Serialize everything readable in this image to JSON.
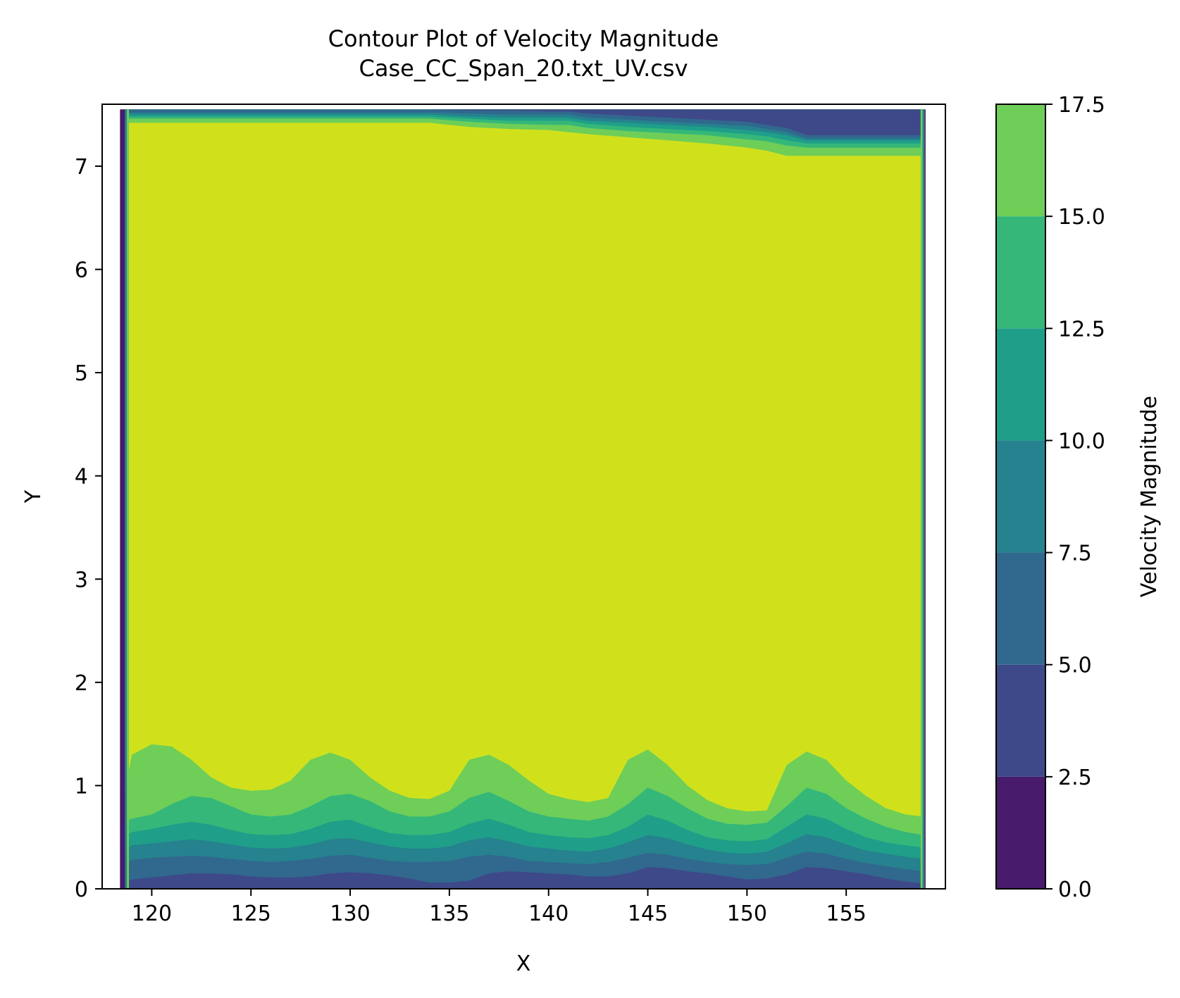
{
  "chart_data": {
    "type": "contour",
    "title": "Contour Plot of Velocity Magnitude",
    "subtitle": "Case_CC_Span_20.txt_UV.csv",
    "xlabel": "X",
    "ylabel": "Y",
    "xlim": [
      117.5,
      160.0
    ],
    "ylim": [
      0,
      7.6
    ],
    "x_ticks": [
      120,
      125,
      130,
      135,
      140,
      145,
      150,
      155
    ],
    "y_ticks": [
      0,
      1,
      2,
      3,
      4,
      5,
      6,
      7
    ],
    "data_x_range": [
      118.4,
      159.0
    ],
    "data_y_range": [
      0,
      7.55
    ],
    "colorbar": {
      "label": "Velocity Magnitude",
      "levels": [
        0.0,
        2.5,
        5.0,
        7.5,
        10.0,
        12.5,
        15.0,
        17.5
      ],
      "tick_labels": [
        "0.0",
        "2.5",
        "5.0",
        "7.5",
        "10.0",
        "12.5",
        "15.0",
        "17.5"
      ],
      "colors": [
        "#481b6d",
        "#3e4989",
        "#31688e",
        "#26828e",
        "#1f9e89",
        "#35b779",
        "#6ece58",
        "#d0e11c"
      ]
    },
    "bottom_boundary_layer": {
      "x": [
        118.6,
        119,
        120,
        121,
        122,
        123,
        124,
        125,
        126,
        127,
        128,
        129,
        130,
        131,
        132,
        133,
        134,
        135,
        136,
        137,
        138,
        139,
        140,
        141,
        142,
        143,
        144,
        145,
        146,
        147,
        148,
        149,
        150,
        151,
        152,
        153,
        154,
        155,
        156,
        157,
        158,
        158.9
      ],
      "contour_15": [
        0.9,
        1.3,
        1.4,
        1.38,
        1.25,
        1.08,
        0.98,
        0.95,
        0.96,
        1.05,
        1.25,
        1.32,
        1.25,
        1.08,
        0.95,
        0.88,
        0.87,
        0.95,
        1.25,
        1.3,
        1.2,
        1.05,
        0.92,
        0.87,
        0.84,
        0.88,
        1.25,
        1.35,
        1.2,
        1.0,
        0.86,
        0.78,
        0.75,
        0.76,
        1.2,
        1.33,
        1.25,
        1.05,
        0.9,
        0.78,
        0.72,
        0.7
      ],
      "contour_12_5": [
        0.65,
        0.68,
        0.72,
        0.82,
        0.9,
        0.88,
        0.8,
        0.72,
        0.7,
        0.72,
        0.8,
        0.9,
        0.92,
        0.85,
        0.75,
        0.7,
        0.7,
        0.75,
        0.88,
        0.94,
        0.85,
        0.75,
        0.7,
        0.68,
        0.66,
        0.7,
        0.82,
        0.98,
        0.9,
        0.78,
        0.68,
        0.63,
        0.62,
        0.64,
        0.8,
        0.98,
        0.92,
        0.78,
        0.68,
        0.6,
        0.55,
        0.52
      ],
      "contour_10": [
        0.5,
        0.55,
        0.58,
        0.62,
        0.65,
        0.62,
        0.57,
        0.53,
        0.52,
        0.53,
        0.58,
        0.65,
        0.67,
        0.6,
        0.54,
        0.52,
        0.52,
        0.55,
        0.63,
        0.68,
        0.62,
        0.55,
        0.52,
        0.5,
        0.49,
        0.52,
        0.6,
        0.72,
        0.66,
        0.57,
        0.5,
        0.47,
        0.46,
        0.48,
        0.6,
        0.72,
        0.68,
        0.58,
        0.5,
        0.45,
        0.42,
        0.4
      ],
      "contour_7_5": [
        0.38,
        0.42,
        0.44,
        0.46,
        0.48,
        0.46,
        0.43,
        0.4,
        0.39,
        0.4,
        0.43,
        0.48,
        0.49,
        0.45,
        0.41,
        0.39,
        0.39,
        0.41,
        0.47,
        0.5,
        0.46,
        0.41,
        0.39,
        0.37,
        0.36,
        0.39,
        0.45,
        0.52,
        0.49,
        0.43,
        0.38,
        0.35,
        0.34,
        0.36,
        0.44,
        0.53,
        0.5,
        0.43,
        0.37,
        0.34,
        0.31,
        0.29
      ],
      "contour_5": [
        0.25,
        0.28,
        0.3,
        0.31,
        0.32,
        0.31,
        0.29,
        0.27,
        0.26,
        0.27,
        0.29,
        0.32,
        0.33,
        0.3,
        0.27,
        0.26,
        0.26,
        0.27,
        0.31,
        0.33,
        0.31,
        0.27,
        0.26,
        0.25,
        0.24,
        0.26,
        0.3,
        0.35,
        0.33,
        0.29,
        0.26,
        0.24,
        0.23,
        0.24,
        0.3,
        0.36,
        0.34,
        0.29,
        0.25,
        0.22,
        0.19,
        0.17
      ],
      "contour_2_5": [
        0.07,
        0.09,
        0.11,
        0.13,
        0.15,
        0.15,
        0.14,
        0.12,
        0.11,
        0.11,
        0.12,
        0.15,
        0.16,
        0.15,
        0.13,
        0.1,
        0.06,
        0.06,
        0.08,
        0.15,
        0.17,
        0.16,
        0.15,
        0.14,
        0.12,
        0.12,
        0.15,
        0.21,
        0.2,
        0.17,
        0.15,
        0.12,
        0.09,
        0.1,
        0.14,
        0.21,
        0.2,
        0.17,
        0.14,
        0.1,
        0.07,
        0.05
      ]
    },
    "top_boundary_layer": {
      "x": [
        118.6,
        121,
        125,
        130,
        134,
        136,
        138,
        140,
        141,
        142,
        144,
        146,
        148,
        150,
        151,
        152,
        153,
        155,
        157,
        158.9
      ],
      "contour_15": [
        7.42,
        7.42,
        7.42,
        7.42,
        7.42,
        7.38,
        7.36,
        7.35,
        7.33,
        7.31,
        7.28,
        7.25,
        7.22,
        7.18,
        7.15,
        7.1,
        7.1,
        7.1,
        7.1,
        7.1
      ],
      "contour_12_5": [
        7.46,
        7.46,
        7.46,
        7.46,
        7.46,
        7.43,
        7.41,
        7.4,
        7.4,
        7.37,
        7.34,
        7.32,
        7.3,
        7.26,
        7.24,
        7.2,
        7.18,
        7.18,
        7.18,
        7.18
      ],
      "contour_10": [
        7.48,
        7.48,
        7.48,
        7.48,
        7.48,
        7.46,
        7.44,
        7.44,
        7.44,
        7.41,
        7.38,
        7.36,
        7.34,
        7.31,
        7.29,
        7.25,
        7.22,
        7.22,
        7.22,
        7.22
      ],
      "contour_7_5": [
        7.5,
        7.5,
        7.5,
        7.5,
        7.5,
        7.48,
        7.47,
        7.47,
        7.47,
        7.44,
        7.42,
        7.4,
        7.38,
        7.35,
        7.33,
        7.3,
        7.25,
        7.25,
        7.25,
        7.25
      ],
      "contour_5": [
        7.52,
        7.52,
        7.52,
        7.52,
        7.52,
        7.51,
        7.5,
        7.5,
        7.5,
        7.47,
        7.45,
        7.43,
        7.41,
        7.39,
        7.36,
        7.33,
        7.27,
        7.27,
        7.27,
        7.27
      ],
      "contour_2_5": [
        7.55,
        7.55,
        7.55,
        7.55,
        7.55,
        7.54,
        7.54,
        7.53,
        7.53,
        7.51,
        7.49,
        7.47,
        7.45,
        7.43,
        7.4,
        7.37,
        7.3,
        7.3,
        7.3,
        7.3
      ]
    },
    "grid": false,
    "legend": "colorbar-right"
  }
}
